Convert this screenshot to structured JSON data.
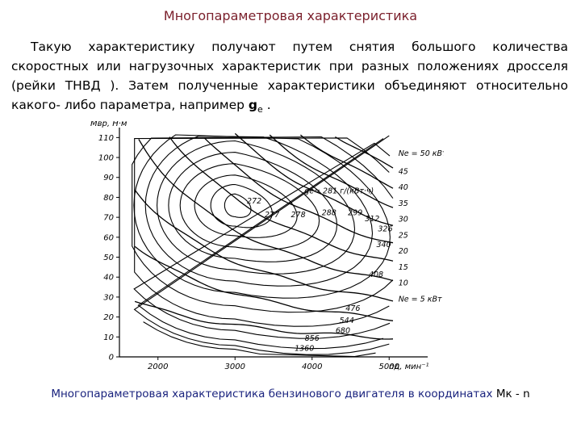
{
  "title": "Многопараметровая  характеристика",
  "paragraph": {
    "text": "Такую характеристику получают путем снятия большого количества скоростных или нагрузочных характеристик при разных положениях дросселя (рейки ТНВД ). Затем полученные характеристики объединяют относительно какого- либо параметра, например ",
    "param_letter": "g",
    "param_sub": "e",
    "tail": " ."
  },
  "chart_data": {
    "type": "contour",
    "ylabel": "Mвр, Н·м",
    "xlabel": "nд, мин⁻¹",
    "y_ticks": [
      "0",
      "10",
      "20",
      "30",
      "40",
      "50",
      "60",
      "70",
      "80",
      "90",
      "100",
      "110"
    ],
    "x_ticks": [
      "2000",
      "3000",
      "4000",
      "5000"
    ],
    "xlim": [
      1500,
      5500
    ],
    "ylim": [
      0,
      115
    ],
    "ge_label": "gе= 281 г/(кВт·ч)",
    "ge_values": [
      "272",
      "277",
      "278",
      "288",
      "299",
      "312",
      "326",
      "340",
      "408",
      "476",
      "544",
      "680",
      "856",
      "1360"
    ],
    "ne_labels": [
      "Nе = 50 кВт",
      "45",
      "40",
      "35",
      "30",
      "25",
      "20",
      "15",
      "10",
      "Nе = 5 кВт"
    ]
  },
  "caption": {
    "text": "Многопараметровая характеристика бензинового двигателя в координатах ",
    "coords": "Мк - n"
  }
}
